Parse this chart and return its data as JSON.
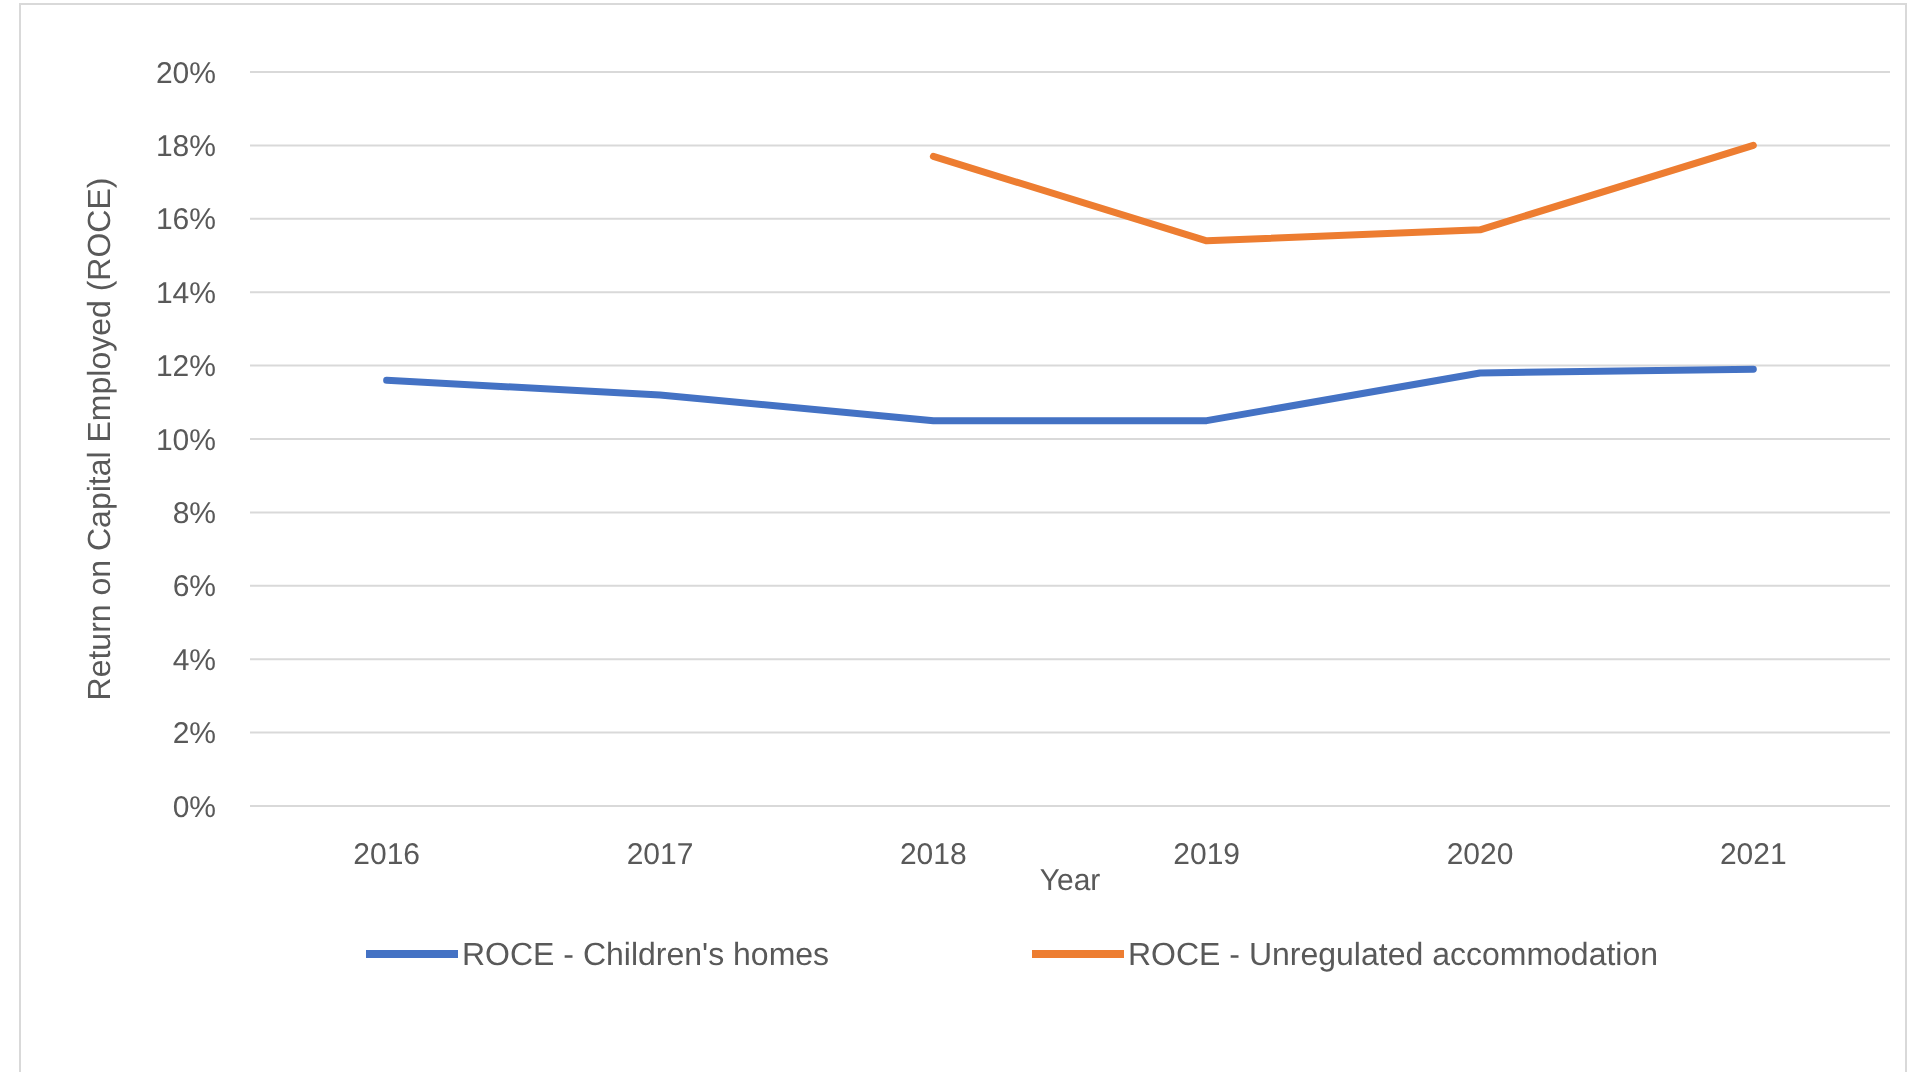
{
  "chart_data": {
    "type": "line",
    "xlabel": "Year",
    "ylabel": "Return on Capital Employed (ROCE)",
    "categories": [
      "2016",
      "2017",
      "2018",
      "2019",
      "2020",
      "2021"
    ],
    "series": [
      {
        "name": "ROCE - Children's homes",
        "color": "#4472c4",
        "values": [
          11.6,
          11.2,
          10.5,
          10.5,
          11.8,
          11.9
        ]
      },
      {
        "name": "ROCE - Unregulated accommodation",
        "color": "#ed7d31",
        "values": [
          null,
          null,
          17.7,
          15.4,
          15.7,
          18.0
        ]
      }
    ],
    "ylim": [
      0,
      20
    ],
    "yticks": [
      {
        "value": 0,
        "label": "0%"
      },
      {
        "value": 2,
        "label": "2%"
      },
      {
        "value": 4,
        "label": "4%"
      },
      {
        "value": 6,
        "label": "6%"
      },
      {
        "value": 8,
        "label": "8%"
      },
      {
        "value": 10,
        "label": "10%"
      },
      {
        "value": 12,
        "label": "12%"
      },
      {
        "value": 14,
        "label": "14%"
      },
      {
        "value": 16,
        "label": "16%"
      },
      {
        "value": 18,
        "label": "18%"
      },
      {
        "value": 20,
        "label": "20%"
      }
    ],
    "grid": "y",
    "legend": "bottom",
    "marker": "none",
    "line_style": "solid"
  }
}
